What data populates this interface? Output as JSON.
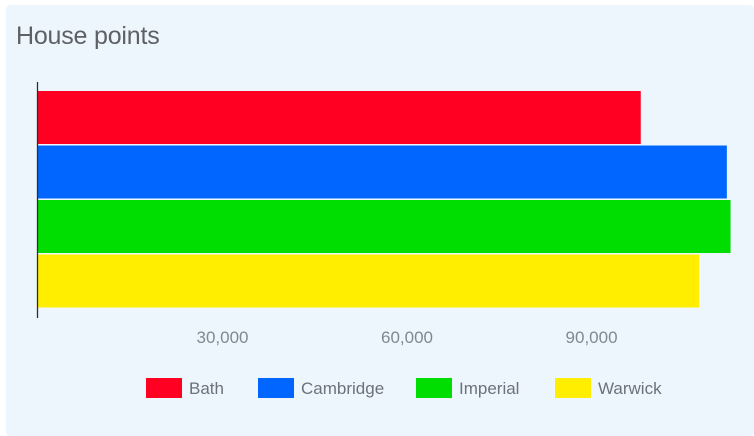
{
  "chart_data": {
    "type": "bar",
    "orientation": "horizontal",
    "title": "House points",
    "categories": [
      "Bath",
      "Cambridge",
      "Imperial",
      "Warwick"
    ],
    "values": [
      98000,
      112000,
      112600,
      107500
    ],
    "colors": [
      "#ff0022",
      "#0066ff",
      "#00dd00",
      "#ffee00"
    ],
    "xlim": [
      0,
      113000
    ],
    "xticks": [
      30000,
      60000,
      90000
    ],
    "xtick_labels": [
      "30,000",
      "60,000",
      "90,000"
    ],
    "xlabel": "",
    "ylabel": "",
    "grid": false,
    "legend": {
      "position": "bottom",
      "items": [
        "Bath",
        "Cambridge",
        "Imperial",
        "Warwick"
      ]
    }
  }
}
